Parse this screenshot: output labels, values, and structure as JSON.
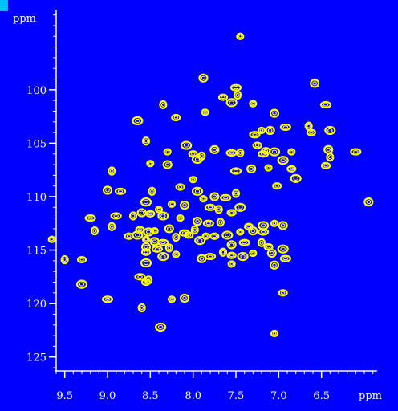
{
  "colors": {
    "background": "#0000ff",
    "axis": "#ffffff",
    "contour": "#ffff00",
    "corner": "#00bfff"
  },
  "chart_data": {
    "type": "scatter",
    "title": "",
    "xlabel": "ppm",
    "ylabel": "ppm",
    "x_reversed": true,
    "y_reversed": true,
    "xlim": [
      9.6,
      5.85
    ],
    "ylim": [
      92.5,
      126.3
    ],
    "x_ticks": [
      9.5,
      9.0,
      8.5,
      8.0,
      7.5,
      7.0,
      6.5
    ],
    "x_tick_labels": [
      "9.5",
      "9.0",
      "8.5",
      "8.0",
      "7.5",
      "7.0",
      "6.5"
    ],
    "y_ticks": [
      100,
      105,
      110,
      115,
      120,
      125
    ],
    "y_tick_labels": [
      "100",
      "105",
      "110",
      "115",
      "120",
      "125"
    ],
    "grid": false,
    "series": [
      {
        "values": [
          [
            7.45,
            95.0
          ],
          [
            7.88,
            98.9
          ],
          [
            7.5,
            99.8
          ],
          [
            7.48,
            100.5
          ],
          [
            7.65,
            100.7
          ],
          [
            7.55,
            101.2
          ],
          [
            7.3,
            101.3
          ],
          [
            6.58,
            99.4
          ],
          [
            6.45,
            101.4
          ],
          [
            8.35,
            101.4
          ],
          [
            8.2,
            102.6
          ],
          [
            8.65,
            102.9
          ],
          [
            7.86,
            102.1
          ],
          [
            7.05,
            102.2
          ],
          [
            6.92,
            103.5
          ],
          [
            6.65,
            103.4
          ],
          [
            6.62,
            104.0
          ],
          [
            6.4,
            103.8
          ],
          [
            7.2,
            103.8
          ],
          [
            7.1,
            103.8
          ],
          [
            7.28,
            104.2
          ],
          [
            8.55,
            104.8
          ],
          [
            7.25,
            105.2
          ],
          [
            8.08,
            105.2
          ],
          [
            8.3,
            105.8
          ],
          [
            7.75,
            105.6
          ],
          [
            7.55,
            105.9
          ],
          [
            7.45,
            105.9
          ],
          [
            7.15,
            105.7
          ],
          [
            7.05,
            105.8
          ],
          [
            6.85,
            105.8
          ],
          [
            6.42,
            105.6
          ],
          [
            6.1,
            105.8
          ],
          [
            7.9,
            106.2
          ],
          [
            8.0,
            106.0
          ],
          [
            7.95,
            106.5
          ],
          [
            8.5,
            106.9
          ],
          [
            8.3,
            107.0
          ],
          [
            7.18,
            106.0
          ],
          [
            6.4,
            106.3
          ],
          [
            6.45,
            107.1
          ],
          [
            6.95,
            106.6
          ],
          [
            7.12,
            107.3
          ],
          [
            7.32,
            107.4
          ],
          [
            7.5,
            107.6
          ],
          [
            8.95,
            107.6
          ],
          [
            6.85,
            107.4
          ],
          [
            6.8,
            108.3
          ],
          [
            8.0,
            108.4
          ],
          [
            9.0,
            109.4
          ],
          [
            8.85,
            109.5
          ],
          [
            8.48,
            109.5
          ],
          [
            8.15,
            109.1
          ],
          [
            7.95,
            109.5
          ],
          [
            7.88,
            110.2
          ],
          [
            7.75,
            110.0
          ],
          [
            7.62,
            110.1
          ],
          [
            7.5,
            109.7
          ],
          [
            7.02,
            109.0
          ],
          [
            8.55,
            110.5
          ],
          [
            8.25,
            110.7
          ],
          [
            8.1,
            110.8
          ],
          [
            7.8,
            111.0
          ],
          [
            7.7,
            111.2
          ],
          [
            7.55,
            111.5
          ],
          [
            7.45,
            111.0
          ],
          [
            8.4,
            111.2
          ],
          [
            8.6,
            111.5
          ],
          [
            8.9,
            111.8
          ],
          [
            8.7,
            111.8
          ],
          [
            8.5,
            111.6
          ],
          [
            8.35,
            111.8
          ],
          [
            8.15,
            112.0
          ],
          [
            7.95,
            112.3
          ],
          [
            7.82,
            112.5
          ],
          [
            7.68,
            112.4
          ],
          [
            7.35,
            112.8
          ],
          [
            7.18,
            112.7
          ],
          [
            7.05,
            112.5
          ],
          [
            6.95,
            112.7
          ],
          [
            9.2,
            112.0
          ],
          [
            8.95,
            112.8
          ],
          [
            8.62,
            113.1
          ],
          [
            8.52,
            113.3
          ],
          [
            8.45,
            113.2
          ],
          [
            8.28,
            113.0
          ],
          [
            8.1,
            113.4
          ],
          [
            7.98,
            113.1
          ],
          [
            7.75,
            113.7
          ],
          [
            7.6,
            113.6
          ],
          [
            7.45,
            113.3
          ],
          [
            7.3,
            113.2
          ],
          [
            7.18,
            113.3
          ],
          [
            9.15,
            113.2
          ],
          [
            8.75,
            113.7
          ],
          [
            8.65,
            113.6
          ],
          [
            8.55,
            114.0
          ],
          [
            8.45,
            114.2
          ],
          [
            8.35,
            114.3
          ],
          [
            8.2,
            113.8
          ],
          [
            8.05,
            113.6
          ],
          [
            7.92,
            114.1
          ],
          [
            7.85,
            113.7
          ],
          [
            7.55,
            114.5
          ],
          [
            7.4,
            114.3
          ],
          [
            7.2,
            114.3
          ],
          [
            7.12,
            114.7
          ],
          [
            6.95,
            114.9
          ],
          [
            9.65,
            114.0
          ],
          [
            8.55,
            114.7
          ],
          [
            8.42,
            114.9
          ],
          [
            8.28,
            114.8
          ],
          [
            8.55,
            115.2
          ],
          [
            8.35,
            115.6
          ],
          [
            8.2,
            115.4
          ],
          [
            7.9,
            115.8
          ],
          [
            7.8,
            115.6
          ],
          [
            7.65,
            115.2
          ],
          [
            7.55,
            115.5
          ],
          [
            7.42,
            115.6
          ],
          [
            7.3,
            115.3
          ],
          [
            7.08,
            115.3
          ],
          [
            6.92,
            115.8
          ],
          [
            9.5,
            115.9
          ],
          [
            9.3,
            115.9
          ],
          [
            8.55,
            116.2
          ],
          [
            7.55,
            116.3
          ],
          [
            7.05,
            116.4
          ],
          [
            8.62,
            117.5
          ],
          [
            8.52,
            117.8
          ],
          [
            8.55,
            118.0
          ],
          [
            9.3,
            118.2
          ],
          [
            8.25,
            119.6
          ],
          [
            8.1,
            119.5
          ],
          [
            9.0,
            119.6
          ],
          [
            8.6,
            120.4
          ],
          [
            6.95,
            119.0
          ],
          [
            8.38,
            122.2
          ],
          [
            7.05,
            122.8
          ],
          [
            5.95,
            110.5
          ]
        ]
      }
    ]
  }
}
